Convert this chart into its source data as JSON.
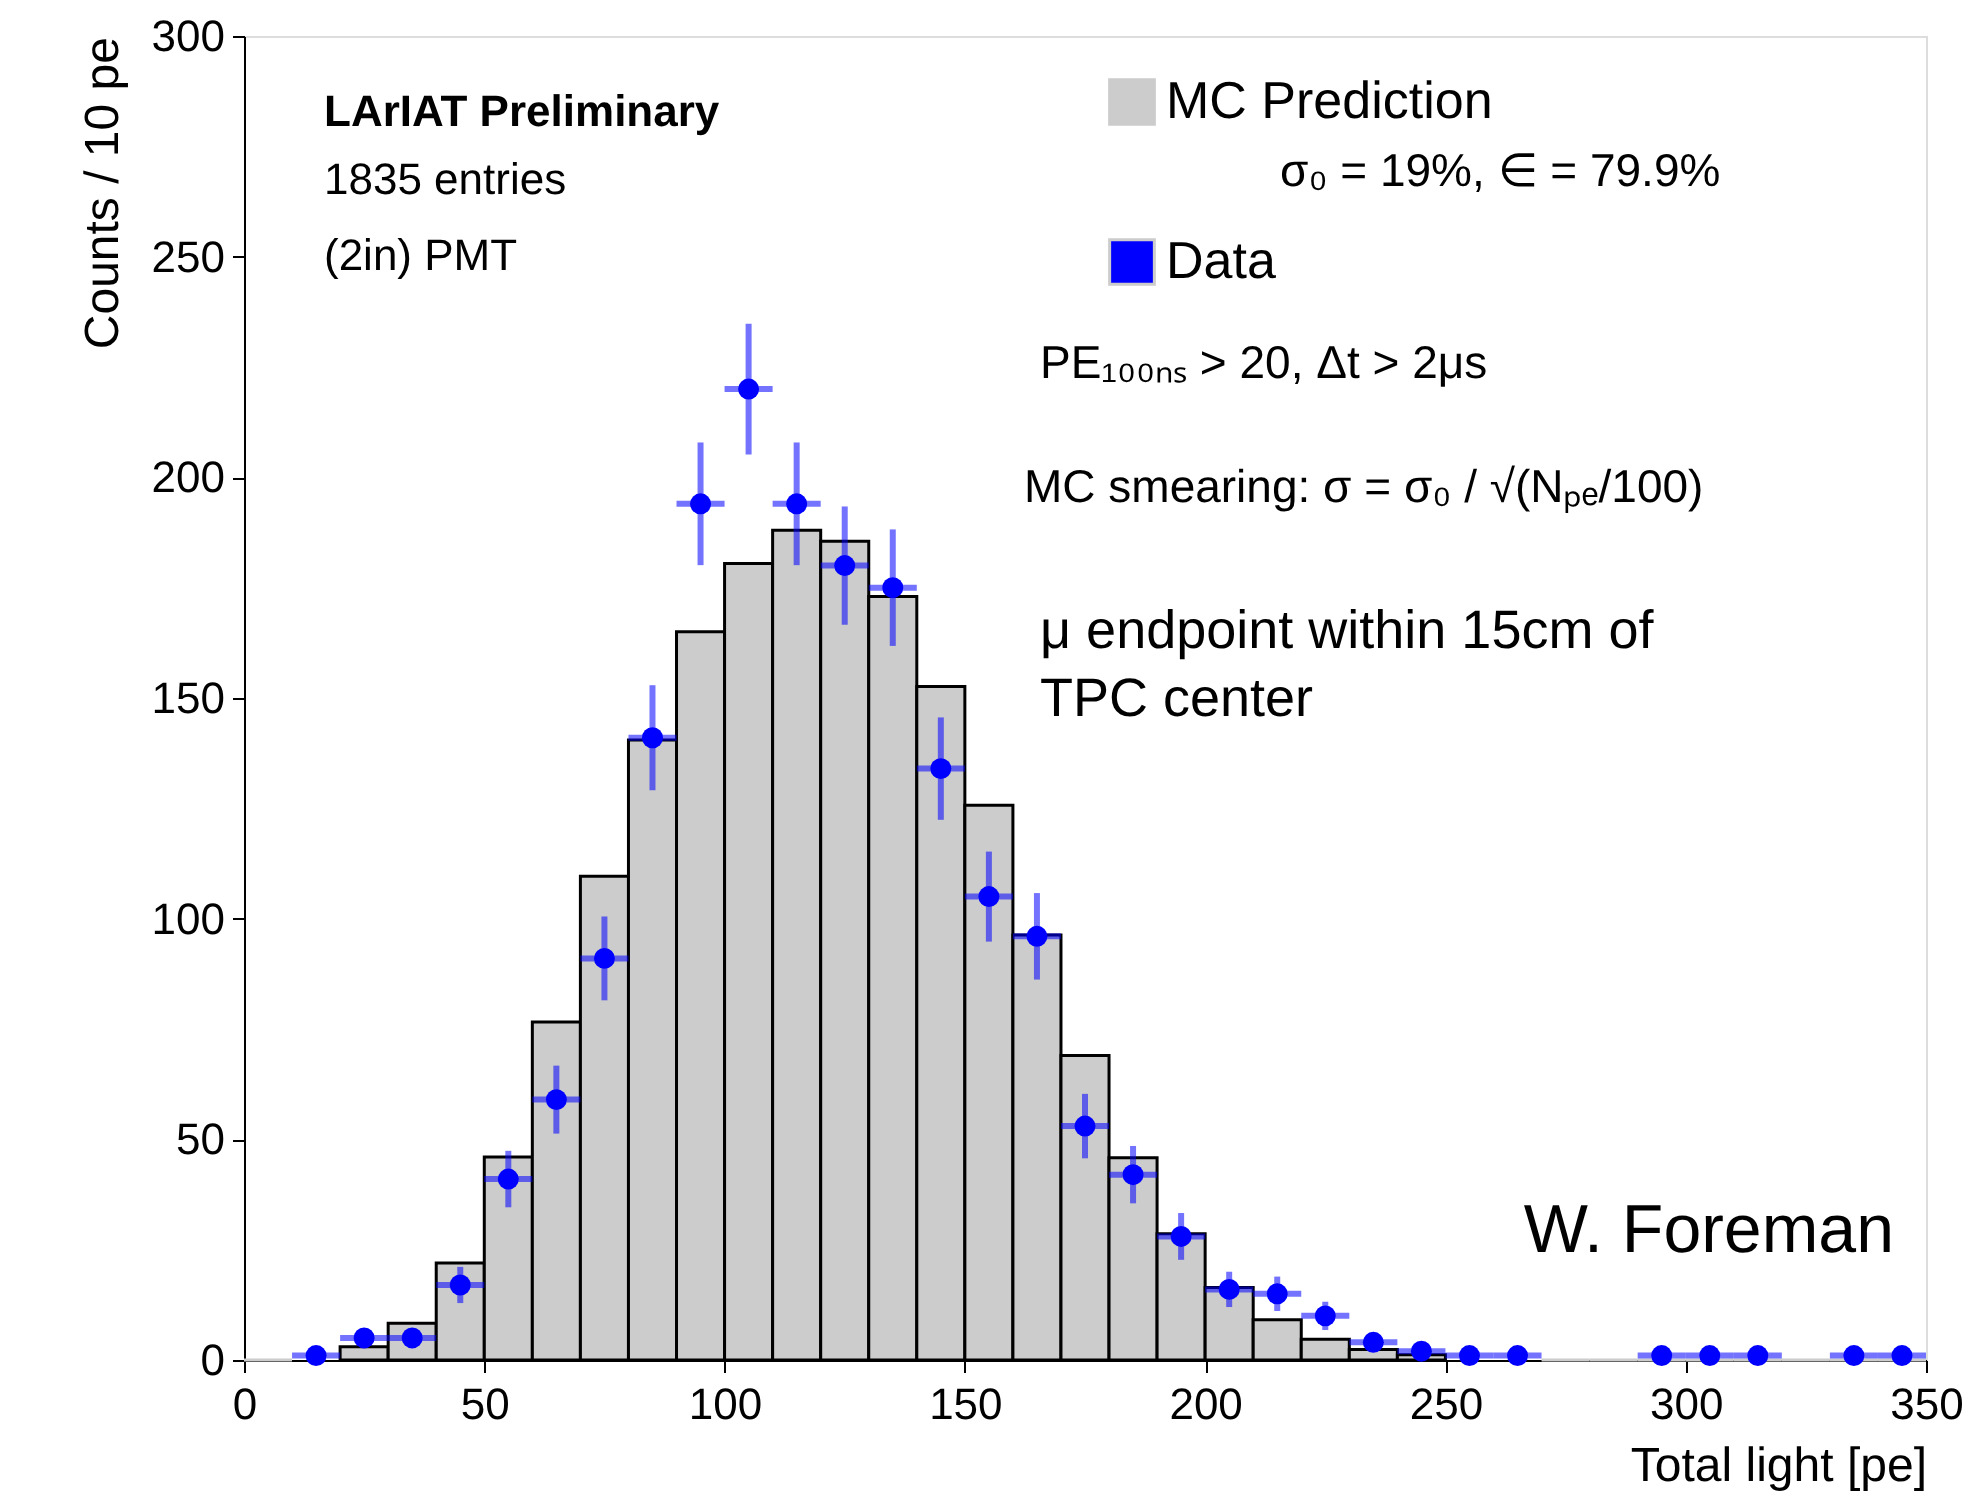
{
  "chart_data": {
    "type": "histogram",
    "title": "LArIAT Preliminary",
    "xlabel": "Total light [pe]",
    "ylabel": "Counts / 10 pe",
    "xlim": [
      0,
      350
    ],
    "xticks": [
      0,
      50,
      100,
      150,
      200,
      250,
      300,
      350
    ],
    "ylim": [
      0,
      300
    ],
    "yticks": [
      0,
      50,
      100,
      150,
      200,
      250,
      300
    ],
    "legend": "top right",
    "grid": false,
    "series": [
      {
        "name": "MC Prediction",
        "color": "#cccccc",
        "bins": [
          0,
          10,
          20,
          30,
          40,
          50,
          60,
          70,
          80,
          90,
          100,
          110,
          120,
          130,
          140,
          150,
          160,
          170,
          180,
          190,
          200,
          210,
          220,
          230,
          240,
          250,
          260,
          270,
          280,
          290,
          300,
          310,
          320,
          330,
          340,
          350
        ],
        "values": [
          0,
          null,
          3,
          8.3,
          22,
          46,
          76.6,
          109.6,
          140.5,
          165,
          180.5,
          188,
          185.5,
          173,
          152.6,
          125.7,
          96.3,
          69,
          45.8,
          28.6,
          16.4,
          9.1,
          4.7,
          2.4,
          1.2,
          null,
          null,
          0,
          0,
          0,
          0,
          0,
          0,
          0,
          0
        ]
      },
      {
        "name": "Data",
        "type": "scatter",
        "color": "#0000ff",
        "marker": "circle",
        "x": [
          15,
          25,
          35,
          45,
          55,
          65,
          75,
          85,
          95,
          105,
          115,
          125,
          135,
          145,
          155,
          165,
          175,
          185,
          195,
          205,
          215,
          225,
          235,
          245,
          255,
          265,
          295,
          305,
          315,
          335,
          345
        ],
        "values": [
          1,
          5,
          5,
          17,
          41,
          59,
          91,
          141,
          194,
          220,
          194,
          180,
          175,
          134,
          105,
          96,
          53,
          42,
          28,
          16,
          15,
          10,
          4,
          2,
          1,
          1,
          1,
          1,
          1,
          1,
          1
        ],
        "errors": [
          1,
          2.2,
          2.2,
          4.1,
          6.4,
          7.7,
          9.5,
          11.9,
          13.9,
          14.8,
          13.9,
          13.4,
          13.2,
          11.6,
          10.2,
          9.8,
          7.3,
          6.5,
          5.3,
          4,
          3.9,
          3.2,
          2,
          1.4,
          1,
          1,
          1,
          1,
          1,
          1,
          1
        ],
        "xerrors": [
          5,
          5,
          5,
          5,
          5,
          5,
          5,
          5,
          5,
          5,
          5,
          5,
          5,
          5,
          5,
          5,
          5,
          5,
          5,
          5,
          5,
          5,
          5,
          5,
          5,
          5,
          5,
          5,
          5,
          5,
          5
        ]
      }
    ],
    "annotations": [
      "1835 entries",
      "(2in) PMT",
      "σ₀ = 19%, ∈ = 79.9%",
      "PE₁₀₀ₙₛ > 20, Δt > 2μs",
      "MC smearing: σ = σ₀ / √(Nₚₑ/100)",
      "μ endpoint within 15cm of TPC center",
      "W. Foreman"
    ]
  }
}
